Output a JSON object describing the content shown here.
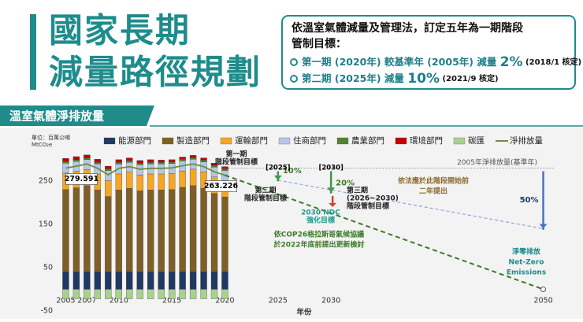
{
  "header": {
    "title_lines": [
      "國家長期",
      "減量路徑規劃"
    ],
    "box": {
      "intro": [
        "依溫室氣體減量及管理法，訂定五年為一期階段",
        "管制目標："
      ],
      "items": [
        {
          "text": "第一期 (2020年) 較基準年 (2005年) 減量 ",
          "target": "2%",
          "approved": " (2018/1 核定)"
        },
        {
          "text": "第二期 (2025年) 減量 ",
          "target": "10%",
          "approved": " (2021/9 核定)"
        }
      ]
    }
  },
  "section_title": "溫室氣體淨排放量",
  "chart_data": {
    "type": "bar",
    "unit_lines": [
      "單位：百萬公噸",
      "MtCO₂e"
    ],
    "x_label": "年份",
    "x": [
      2005,
      2006,
      2007,
      2008,
      2009,
      2010,
      2011,
      2012,
      2013,
      2014,
      2015,
      2016,
      2017,
      2018,
      2019,
      2020
    ],
    "xlim": [
      2004,
      2051
    ],
    "xticks": [
      2005,
      2007,
      2010,
      2015,
      2020,
      2025,
      2030,
      2050
    ],
    "ylim": [
      -50,
      295
    ],
    "yticks": [
      -50,
      50,
      150,
      250
    ],
    "grid": false,
    "series": [
      {
        "name": "能源部門",
        "color": "#1f3864",
        "values": [
          40,
          40,
          40,
          40,
          40,
          40,
          40,
          40,
          40,
          40,
          40,
          40,
          40,
          40,
          40,
          40
        ]
      },
      {
        "name": "製造部門",
        "color": "#7f5f28",
        "values": [
          190,
          194,
          199,
          189,
          174,
          189,
          193,
          187,
          189,
          189,
          190,
          195,
          199,
          193,
          181,
          173
        ]
      },
      {
        "name": "運輸部門",
        "color": "#f5a623",
        "values": [
          38,
          38,
          37,
          37,
          37,
          37,
          37,
          37,
          37,
          37,
          37,
          38,
          38,
          38,
          38,
          38
        ]
      },
      {
        "name": "住商部門",
        "color": "#b4c7e7",
        "values": [
          23,
          23,
          23,
          23,
          23,
          23,
          23,
          23,
          23,
          23,
          23,
          23,
          23,
          23,
          23,
          23
        ]
      },
      {
        "name": "農業部門",
        "color": "#548235",
        "values": [
          4,
          4,
          4,
          4,
          4,
          4,
          4,
          4,
          4,
          4,
          4,
          4,
          4,
          4,
          4,
          4
        ]
      },
      {
        "name": "環境部門",
        "color": "#c00000",
        "values": [
          7,
          7,
          7,
          7,
          6,
          6,
          6,
          6,
          6,
          5,
          5,
          5,
          5,
          5,
          5,
          5
        ]
      },
      {
        "name": "碳匯",
        "color": "#a9d18e",
        "values": [
          -22,
          -22,
          -22,
          -22,
          -22,
          -22,
          -22,
          -22,
          -22,
          -22,
          -22,
          -22,
          -22,
          -22,
          -22,
          -22
        ]
      },
      {
        "name": "淨排放量",
        "color": "#6b8e3a",
        "type": "line",
        "values": [
          279.591,
          284,
          289,
          279,
          264,
          279,
          283,
          277,
          279,
          279,
          280,
          285,
          289,
          283,
          271,
          263.226
        ]
      }
    ],
    "baseline_label": "2005年淨排放量(基準年)",
    "targets": [
      {
        "x": 2025,
        "x_label": "[2025]",
        "value": 251.6,
        "label": "10%",
        "color": "#3d9a4a"
      },
      {
        "x": 2030,
        "x_label": "[2030]",
        "value": 223.7,
        "label": "20%",
        "color": "#3d9a4a"
      },
      {
        "x": 2050,
        "value": 139.8,
        "label": "50%",
        "color": "#4a72c4"
      }
    ],
    "ndc": {
      "x": 2030,
      "value": 190,
      "color": "#e03a2a"
    },
    "net_zero": {
      "x": 2050,
      "value": 0,
      "color": "#3d7a2a"
    },
    "annotations": [
      {
        "lines": [
          "第一期",
          "階段管制目標"
        ],
        "color": "#222"
      },
      {
        "lines": [
          "第二期",
          "階段管制目標"
        ],
        "color": "#222"
      },
      {
        "lines": [
          "第三期",
          "(2026~2030)",
          "階段管制目標"
        ],
        "color": "#222"
      },
      {
        "lines": [
          "2030 NDC",
          "強化目標"
        ],
        "color": "#1a9a8a"
      },
      {
        "lines": [
          "依法應於此階段開始前",
          "二年提出"
        ],
        "color": "#8b6a2b"
      },
      {
        "lines": [
          "依COP26格拉斯哥氣候協議",
          "於2022年底前提出更新檢討"
        ],
        "color": "#3d7a2a"
      },
      {
        "lines": [
          "淨零排放",
          "Net-Zero",
          "Emissions"
        ],
        "color": "#1a8a8a"
      }
    ]
  }
}
